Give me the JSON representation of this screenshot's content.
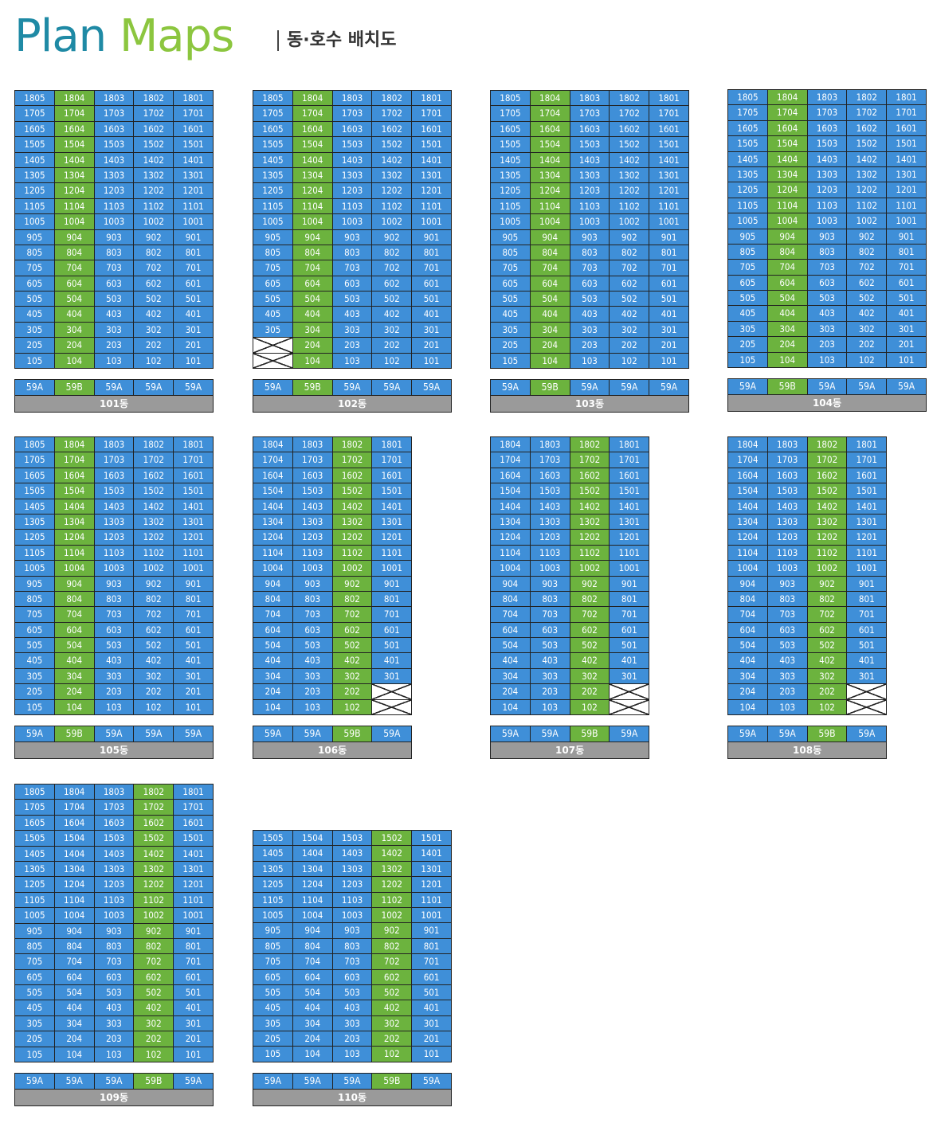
{
  "header": {
    "title_part1": "Plan",
    "title_part2": "Maps",
    "subtitle": "동·호수 배치도"
  },
  "colors": {
    "type_59a": "#3f8fd8",
    "type_59b": "#6cb33e",
    "label_bg": "#9a9a9a"
  },
  "buildings": [
    {
      "name": "101동",
      "top_floor": 18,
      "lines": [
        "05",
        "04",
        "03",
        "02",
        "01"
      ],
      "types": [
        "59A",
        "59B",
        "59A",
        "59A",
        "59A"
      ],
      "missing": []
    },
    {
      "name": "102동",
      "top_floor": 18,
      "lines": [
        "05",
        "04",
        "03",
        "02",
        "01"
      ],
      "types": [
        "59A",
        "59B",
        "59A",
        "59A",
        "59A"
      ],
      "missing": [
        "205",
        "105"
      ]
    },
    {
      "name": "103동",
      "top_floor": 18,
      "lines": [
        "05",
        "04",
        "03",
        "02",
        "01"
      ],
      "types": [
        "59A",
        "59B",
        "59A",
        "59A",
        "59A"
      ],
      "missing": []
    },
    {
      "name": "104동",
      "top_floor": 18,
      "lines": [
        "05",
        "04",
        "03",
        "02",
        "01"
      ],
      "types": [
        "59A",
        "59B",
        "59A",
        "59A",
        "59A"
      ],
      "missing": []
    },
    {
      "name": "105동",
      "top_floor": 18,
      "lines": [
        "05",
        "04",
        "03",
        "02",
        "01"
      ],
      "types": [
        "59A",
        "59B",
        "59A",
        "59A",
        "59A"
      ],
      "missing": []
    },
    {
      "name": "106동",
      "top_floor": 18,
      "lines": [
        "04",
        "03",
        "02",
        "01"
      ],
      "types": [
        "59A",
        "59A",
        "59B",
        "59A"
      ],
      "missing": [
        "201",
        "101"
      ]
    },
    {
      "name": "107동",
      "top_floor": 18,
      "lines": [
        "04",
        "03",
        "02",
        "01"
      ],
      "types": [
        "59A",
        "59A",
        "59B",
        "59A"
      ],
      "missing": [
        "201",
        "101"
      ]
    },
    {
      "name": "108동",
      "top_floor": 18,
      "lines": [
        "04",
        "03",
        "02",
        "01"
      ],
      "types": [
        "59A",
        "59A",
        "59B",
        "59A"
      ],
      "missing": [
        "201",
        "101"
      ]
    },
    {
      "name": "109동",
      "top_floor": 18,
      "lines": [
        "05",
        "04",
        "03",
        "02",
        "01"
      ],
      "types": [
        "59A",
        "59A",
        "59A",
        "59B",
        "59A"
      ],
      "missing": []
    },
    {
      "name": "110동",
      "top_floor": 15,
      "lines": [
        "05",
        "04",
        "03",
        "02",
        "01"
      ],
      "types": [
        "59A",
        "59A",
        "59A",
        "59B",
        "59A"
      ],
      "missing": []
    }
  ]
}
